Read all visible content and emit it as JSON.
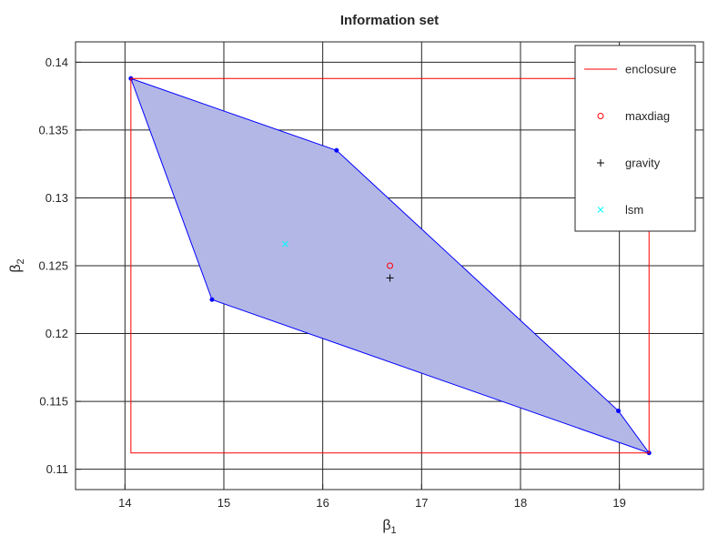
{
  "chart_data": {
    "type": "scatter",
    "title": "Information set",
    "xlabel": {
      "base": "β",
      "sub": "1"
    },
    "ylabel": {
      "base": "β",
      "sub": "2"
    },
    "xlim": [
      13.5,
      19.85
    ],
    "ylim": [
      0.1085,
      0.1415
    ],
    "grid": true,
    "x_ticks": [
      14,
      15,
      16,
      17,
      18,
      19
    ],
    "x_tick_labels": [
      "14",
      "15",
      "16",
      "17",
      "18",
      "19"
    ],
    "y_ticks": [
      0.11,
      0.115,
      0.12,
      0.125,
      0.13,
      0.135,
      0.14
    ],
    "y_tick_labels": [
      "0.11",
      "0.115",
      "0.12",
      "0.125",
      "0.13",
      "0.135",
      "0.14"
    ],
    "information_set": {
      "fill_color": "#b3b7e6",
      "edge_color": "#0000ff",
      "vertices": [
        {
          "x": 14.06,
          "y": 0.1388
        },
        {
          "x": 16.14,
          "y": 0.1335
        },
        {
          "x": 18.99,
          "y": 0.1143
        },
        {
          "x": 19.3,
          "y": 0.1112
        },
        {
          "x": 14.88,
          "y": 0.1225
        }
      ]
    },
    "series": [
      {
        "name": "enclosure",
        "kind": "rectangle",
        "color": "#ff0000",
        "x": [
          14.06,
          19.3
        ],
        "y": [
          0.1112,
          0.1388
        ]
      },
      {
        "name": "maxdiag",
        "kind": "marker",
        "marker": "o",
        "color": "#ff0000",
        "x": 16.68,
        "y": 0.125
      },
      {
        "name": "gravity",
        "kind": "marker",
        "marker": "+",
        "color": "#000000",
        "x": 16.68,
        "y": 0.1241
      },
      {
        "name": "lsm",
        "kind": "marker",
        "marker": "x",
        "color": "#00ffff",
        "x": 15.62,
        "y": 0.1266
      }
    ],
    "legend": {
      "placement": "top-right",
      "entries": [
        "enclosure",
        "maxdiag",
        "gravity",
        "lsm"
      ]
    }
  }
}
